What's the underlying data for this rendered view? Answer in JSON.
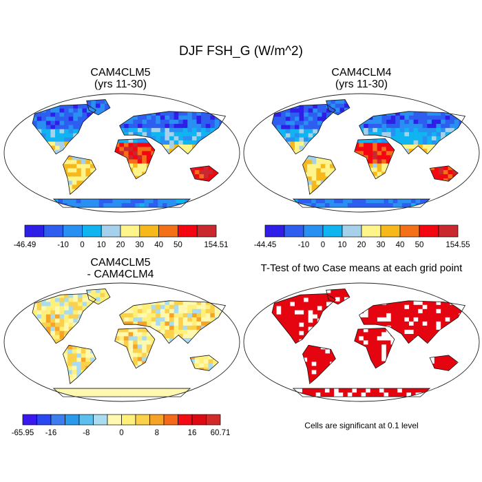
{
  "title": "DJF FSH_G (W/m^2)",
  "panels": [
    {
      "title_line1": "CAM4CLM5",
      "title_line2": "(yrs 11-30)",
      "colorbar": {
        "labels": [
          "-46.49",
          "-10",
          "0",
          "10",
          "20",
          "30",
          "40",
          "50",
          "154.51"
        ],
        "colors": [
          "#2e1ee8",
          "#2d5ef0",
          "#2a8ff2",
          "#0fb4f0",
          "#a5d2ea",
          "#fff48a",
          "#f7b81c",
          "#f37018",
          "#f40512",
          "#c9282e"
        ]
      }
    },
    {
      "title_line1": "CAM4CLM4",
      "title_line2": "(yrs 11-30)",
      "colorbar": {
        "labels": [
          "-44.45",
          "-10",
          "0",
          "10",
          "20",
          "30",
          "40",
          "50",
          "154.55"
        ],
        "colors": [
          "#2e1ee8",
          "#2d5ef0",
          "#2a8ff2",
          "#0fb4f0",
          "#a5d2ea",
          "#fff48a",
          "#f7b81c",
          "#f37018",
          "#f40512",
          "#c9282e"
        ]
      }
    },
    {
      "title_line1": "CAM4CLM5",
      "title_line2": "- CAM4CLM4",
      "colorbar": {
        "labels": [
          "-65.95",
          "-16",
          "-8",
          "0",
          "8",
          "16",
          "60.71"
        ],
        "colors": [
          "#3a18f0",
          "#2a48f0",
          "#3c7ef0",
          "#2a9aee",
          "#5cc0ee",
          "#a9dcf0",
          "#fff8b0",
          "#fff07a",
          "#fbd04a",
          "#f7a426",
          "#f46a1a",
          "#f40a12",
          "#dc0a12",
          "#d22a2a"
        ]
      }
    },
    {
      "title": "T-Test of two Case means at each grid point",
      "note": "Cells are significant at 0.1 level",
      "significance_color": "#e40510"
    }
  ]
}
